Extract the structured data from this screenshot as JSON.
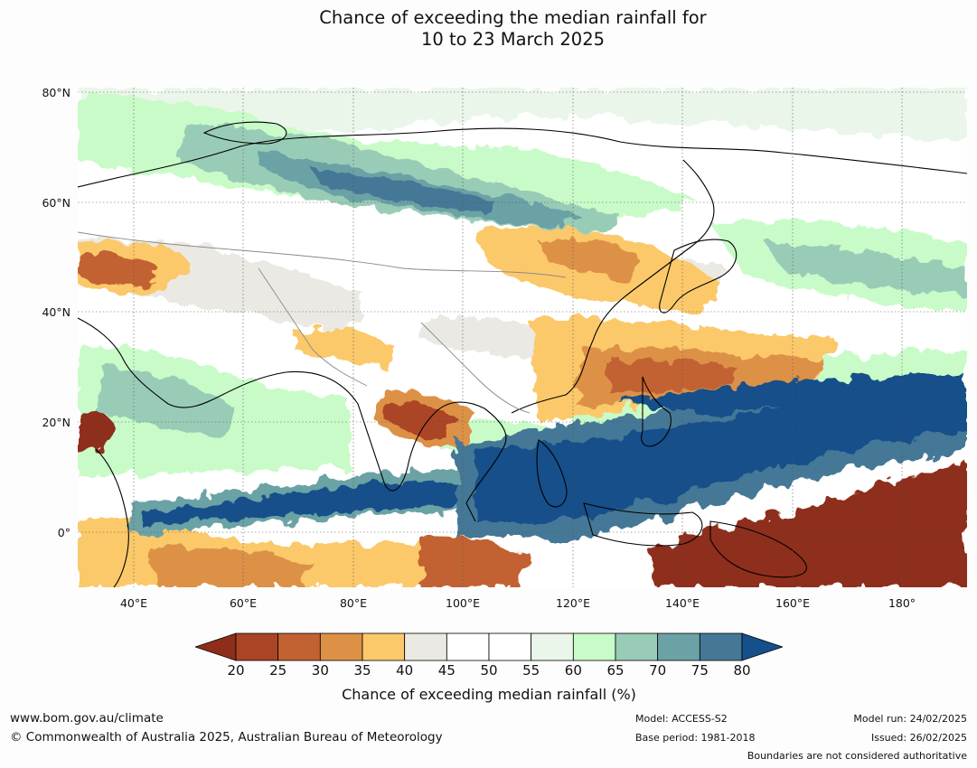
{
  "title_line1": "Chance of exceeding the median rainfall for",
  "title_line2": "10 to 23 March 2025",
  "lat_labels": [
    "80°N",
    "60°N",
    "40°N",
    "20°N",
    "0°"
  ],
  "lon_labels": [
    "40°E",
    "60°E",
    "80°E",
    "100°E",
    "120°E",
    "140°E",
    "160°E",
    "180°"
  ],
  "colorbar": {
    "label": "Chance of exceeding median rainfall (%)",
    "ticks": [
      "20",
      "25",
      "30",
      "35",
      "40",
      "45",
      "50",
      "55",
      "60",
      "65",
      "70",
      "75",
      "80"
    ],
    "colors": [
      "#8e2d1a",
      "#ab4425",
      "#c26233",
      "#dd9146",
      "#fbc96a",
      "#ebe9e4",
      "#ffffff",
      "#ffffff",
      "#eaf6ea",
      "#c9fbc9",
      "#99ccb6",
      "#6ba2a5",
      "#447896",
      "#15508a"
    ]
  },
  "footer": {
    "url": "www.bom.gov.au/climate",
    "copyright": "© Commonwealth of Australia 2025, Australian Bureau of Meteorology",
    "model": "Model: ACCESS-S2",
    "base_period": "Base period: 1981-2018",
    "model_run": "Model run: 24/02/2025",
    "issued": "Issued: 26/02/2025",
    "boundaries": "Boundaries are not considered authoritative"
  }
}
